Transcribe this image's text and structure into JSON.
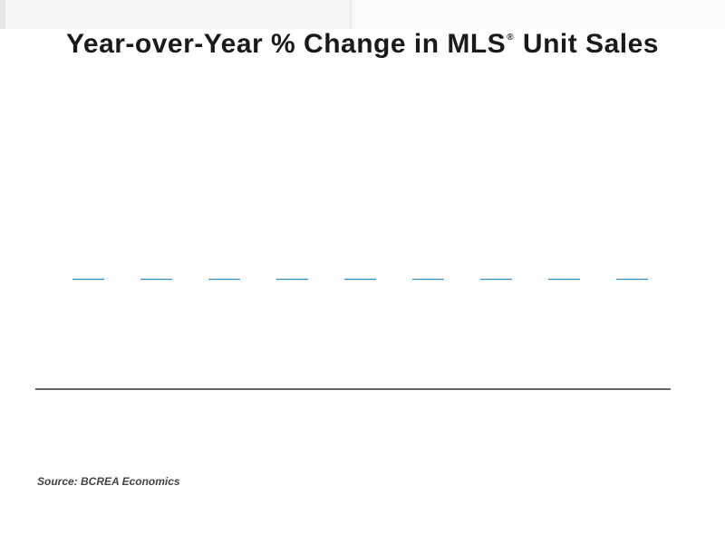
{
  "chart_data": {
    "type": "bar",
    "title_main": "Year-over-Year % Change in MLS",
    "title_reg": "®",
    "title_tail": "Unit Sales",
    "categories": [
      "",
      "",
      "",
      "",
      "",
      "",
      "",
      "",
      ""
    ],
    "values": [
      0,
      0,
      0,
      0,
      0,
      0,
      0,
      0,
      0
    ],
    "xlabel": "",
    "ylabel": "",
    "ylim": [
      -100,
      100
    ],
    "grid": false,
    "bar_color": "#2c8ac6",
    "axis_color": "#333333",
    "source": "Source: BCREA Economics"
  }
}
